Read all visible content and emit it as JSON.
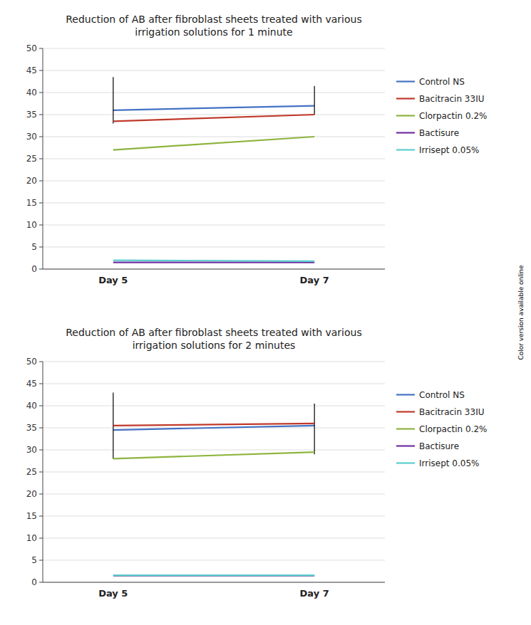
{
  "chart_data": [
    {
      "type": "line",
      "title": "Reduction of AB after fibroblast sheets treated with various\nirrigation solutions for 1 minute",
      "categories": [
        "Day 5",
        "Day 7"
      ],
      "series": [
        {
          "name": "Control NS",
          "color": "#4472C4",
          "values": [
            36,
            37
          ],
          "error_low": [
            3,
            2
          ],
          "error_high": [
            7.5,
            4.5
          ]
        },
        {
          "name": "Bacitracin 33IU",
          "color": "#C0392B",
          "values": [
            33.5,
            35
          ]
        },
        {
          "name": "Clorpactin 0.2%",
          "color": "#8DB43E",
          "values": [
            27,
            30
          ]
        },
        {
          "name": "Bactisure",
          "color": "#7030A0",
          "values": [
            1.5,
            1.5
          ]
        },
        {
          "name": "Irrisept 0.05%",
          "color": "#5BCFCF",
          "values": [
            2.0,
            1.8
          ]
        }
      ],
      "ylim": [
        0,
        50
      ],
      "yticks": [
        0,
        5,
        10,
        15,
        20,
        25,
        30,
        35,
        40,
        45,
        50
      ],
      "grid": true,
      "legend": "right",
      "annotations": [
        "Color version available online"
      ]
    },
    {
      "type": "line",
      "title": "Reduction of AB after fibroblast sheets treated with various\nirrigation solutions for 2 minutes",
      "categories": [
        "Day 5",
        "Day 7"
      ],
      "series": [
        {
          "name": "Control NS",
          "color": "#4472C4",
          "values": [
            34.5,
            35.5
          ],
          "error_low": [
            6.5,
            6.5
          ],
          "error_high": [
            8.5,
            5.0
          ]
        },
        {
          "name": "Bacitracin 33IU",
          "color": "#C0392B",
          "values": [
            35.5,
            36
          ]
        },
        {
          "name": "Clorpactin 0.2%",
          "color": "#8DB43E",
          "values": [
            28,
            29.5
          ]
        },
        {
          "name": "Bactisure",
          "color": "#7030A0",
          "values": [
            1.5,
            1.5
          ]
        },
        {
          "name": "Irrisept 0.05%",
          "color": "#5BCFCF",
          "values": [
            1.6,
            1.6
          ]
        }
      ],
      "ylim": [
        0,
        50
      ],
      "yticks": [
        0,
        5,
        10,
        15,
        20,
        25,
        30,
        35,
        40,
        45,
        50
      ],
      "grid": true,
      "legend": "right"
    }
  ]
}
